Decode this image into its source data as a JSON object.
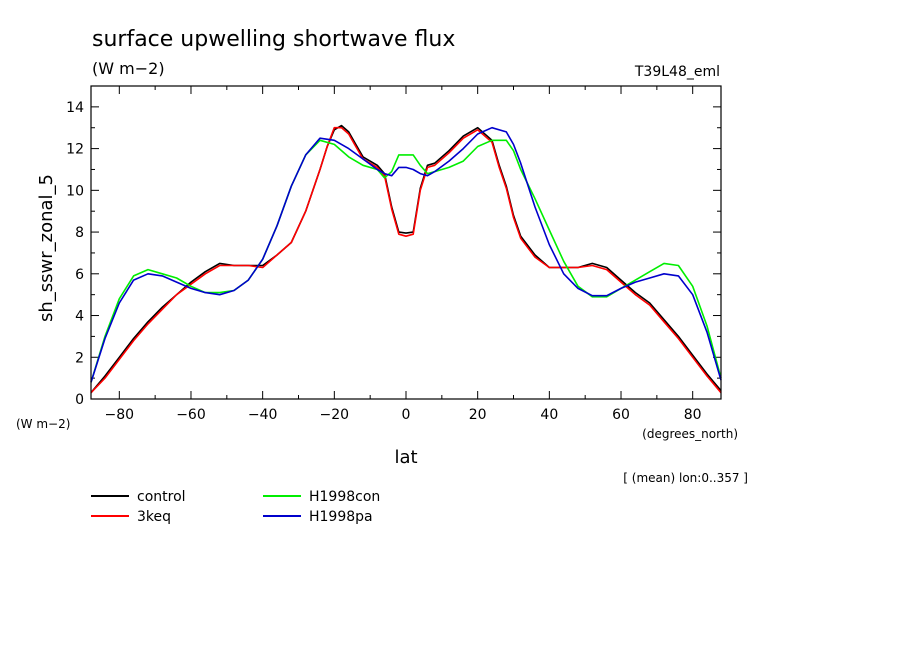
{
  "chart_data": {
    "type": "line",
    "title": "surface upwelling shortwave flux",
    "units_top": "(W m−2)",
    "run_label": "T39L48_eml",
    "ylabel": "sh_sswr_zonal_5",
    "units_y": "(W m−2)",
    "xlabel": "lat",
    "units_x": "(degrees_north)",
    "subset_note": "[ (mean) lon:0..357 ]",
    "xlim": [
      -87.9,
      87.9
    ],
    "ylim": [
      0,
      15
    ],
    "xticks": [
      -80,
      -60,
      -40,
      -20,
      0,
      20,
      40,
      60,
      80
    ],
    "yticks": [
      0,
      2,
      4,
      6,
      8,
      10,
      12,
      14
    ],
    "xtick_labels": [
      "−80",
      "−60",
      "−40",
      "−20",
      "0",
      "20",
      "40",
      "60",
      "80"
    ],
    "ytick_labels": [
      "0",
      "2",
      "4",
      "6",
      "8",
      "10",
      "12",
      "14"
    ],
    "legend_placement": "bottom",
    "series": [
      {
        "name": "control",
        "color": "#000000",
        "points": [
          [
            -87.9,
            0.3
          ],
          [
            -84,
            1.1
          ],
          [
            -80,
            2.0
          ],
          [
            -76,
            2.9
          ],
          [
            -72,
            3.7
          ],
          [
            -68,
            4.4
          ],
          [
            -64,
            5.0
          ],
          [
            -60,
            5.6
          ],
          [
            -56,
            6.1
          ],
          [
            -52,
            6.5
          ],
          [
            -48,
            6.4
          ],
          [
            -44,
            6.4
          ],
          [
            -40,
            6.4
          ],
          [
            -36,
            6.9
          ],
          [
            -32,
            7.5
          ],
          [
            -28,
            9.0
          ],
          [
            -24,
            11.0
          ],
          [
            -22,
            12.1
          ],
          [
            -20,
            12.9
          ],
          [
            -18,
            13.1
          ],
          [
            -16,
            12.8
          ],
          [
            -14,
            12.2
          ],
          [
            -12,
            11.6
          ],
          [
            -8,
            11.2
          ],
          [
            -6,
            10.8
          ],
          [
            -4,
            9.2
          ],
          [
            -2,
            8.0
          ],
          [
            0,
            7.95
          ],
          [
            2,
            8.0
          ],
          [
            4,
            10.1
          ],
          [
            6,
            11.2
          ],
          [
            8,
            11.3
          ],
          [
            12,
            11.9
          ],
          [
            16,
            12.6
          ],
          [
            20,
            13.0
          ],
          [
            24,
            12.4
          ],
          [
            26,
            11.2
          ],
          [
            28,
            10.2
          ],
          [
            30,
            8.8
          ],
          [
            32,
            7.8
          ],
          [
            36,
            6.9
          ],
          [
            40,
            6.3
          ],
          [
            44,
            6.3
          ],
          [
            48,
            6.3
          ],
          [
            52,
            6.5
          ],
          [
            56,
            6.3
          ],
          [
            60,
            5.7
          ],
          [
            64,
            5.1
          ],
          [
            68,
            4.6
          ],
          [
            72,
            3.8
          ],
          [
            76,
            3.0
          ],
          [
            80,
            2.1
          ],
          [
            84,
            1.2
          ],
          [
            87.9,
            0.4
          ]
        ]
      },
      {
        "name": "3keq",
        "color": "#ff0000",
        "points": [
          [
            -87.9,
            0.3
          ],
          [
            -84,
            1.0
          ],
          [
            -80,
            1.9
          ],
          [
            -76,
            2.8
          ],
          [
            -72,
            3.6
          ],
          [
            -68,
            4.3
          ],
          [
            -64,
            5.0
          ],
          [
            -60,
            5.5
          ],
          [
            -56,
            6.0
          ],
          [
            -52,
            6.4
          ],
          [
            -48,
            6.4
          ],
          [
            -44,
            6.4
          ],
          [
            -40,
            6.3
          ],
          [
            -36,
            6.9
          ],
          [
            -32,
            7.5
          ],
          [
            -28,
            9.0
          ],
          [
            -24,
            11.0
          ],
          [
            -22,
            12.1
          ],
          [
            -20,
            13.0
          ],
          [
            -18,
            13.0
          ],
          [
            -16,
            12.7
          ],
          [
            -14,
            12.1
          ],
          [
            -12,
            11.5
          ],
          [
            -8,
            11.1
          ],
          [
            -6,
            10.7
          ],
          [
            -4,
            9.1
          ],
          [
            -2,
            7.9
          ],
          [
            0,
            7.8
          ],
          [
            2,
            7.9
          ],
          [
            4,
            10.0
          ],
          [
            6,
            11.1
          ],
          [
            8,
            11.2
          ],
          [
            12,
            11.8
          ],
          [
            16,
            12.5
          ],
          [
            20,
            12.9
          ],
          [
            24,
            12.3
          ],
          [
            26,
            11.1
          ],
          [
            28,
            10.1
          ],
          [
            30,
            8.7
          ],
          [
            32,
            7.7
          ],
          [
            36,
            6.8
          ],
          [
            40,
            6.3
          ],
          [
            44,
            6.3
          ],
          [
            48,
            6.3
          ],
          [
            52,
            6.4
          ],
          [
            56,
            6.2
          ],
          [
            60,
            5.6
          ],
          [
            64,
            5.0
          ],
          [
            68,
            4.5
          ],
          [
            72,
            3.7
          ],
          [
            76,
            2.9
          ],
          [
            80,
            2.0
          ],
          [
            84,
            1.1
          ],
          [
            87.9,
            0.3
          ]
        ]
      },
      {
        "name": "H1998con",
        "color": "#00ee00",
        "points": [
          [
            -87.9,
            0.8
          ],
          [
            -84,
            3.0
          ],
          [
            -80,
            4.8
          ],
          [
            -76,
            5.9
          ],
          [
            -72,
            6.2
          ],
          [
            -68,
            6.0
          ],
          [
            -64,
            5.8
          ],
          [
            -60,
            5.4
          ],
          [
            -56,
            5.1
          ],
          [
            -52,
            5.1
          ],
          [
            -48,
            5.2
          ],
          [
            -44,
            5.7
          ],
          [
            -40,
            6.7
          ],
          [
            -36,
            8.3
          ],
          [
            -32,
            10.2
          ],
          [
            -28,
            11.7
          ],
          [
            -24,
            12.4
          ],
          [
            -20,
            12.2
          ],
          [
            -16,
            11.6
          ],
          [
            -12,
            11.2
          ],
          [
            -8,
            11.0
          ],
          [
            -6,
            10.6
          ],
          [
            -4,
            10.9
          ],
          [
            -2,
            11.7
          ],
          [
            0,
            11.7
          ],
          [
            2,
            11.7
          ],
          [
            4,
            11.2
          ],
          [
            6,
            10.8
          ],
          [
            8,
            10.9
          ],
          [
            12,
            11.1
          ],
          [
            16,
            11.4
          ],
          [
            20,
            12.1
          ],
          [
            24,
            12.4
          ],
          [
            28,
            12.4
          ],
          [
            30,
            11.9
          ],
          [
            32,
            11.0
          ],
          [
            36,
            9.6
          ],
          [
            40,
            8.1
          ],
          [
            44,
            6.6
          ],
          [
            48,
            5.4
          ],
          [
            52,
            4.9
          ],
          [
            56,
            4.9
          ],
          [
            60,
            5.3
          ],
          [
            64,
            5.7
          ],
          [
            68,
            6.1
          ],
          [
            72,
            6.5
          ],
          [
            76,
            6.4
          ],
          [
            80,
            5.4
          ],
          [
            84,
            3.5
          ],
          [
            87.9,
            1.0
          ]
        ]
      },
      {
        "name": "H1998pa",
        "color": "#0000cc",
        "points": [
          [
            -87.9,
            0.8
          ],
          [
            -84,
            2.9
          ],
          [
            -80,
            4.6
          ],
          [
            -76,
            5.7
          ],
          [
            -72,
            6.0
          ],
          [
            -68,
            5.9
          ],
          [
            -64,
            5.6
          ],
          [
            -60,
            5.3
          ],
          [
            -56,
            5.1
          ],
          [
            -52,
            5.0
          ],
          [
            -48,
            5.2
          ],
          [
            -44,
            5.7
          ],
          [
            -40,
            6.7
          ],
          [
            -36,
            8.3
          ],
          [
            -32,
            10.2
          ],
          [
            -28,
            11.7
          ],
          [
            -24,
            12.5
          ],
          [
            -20,
            12.4
          ],
          [
            -16,
            12.0
          ],
          [
            -12,
            11.5
          ],
          [
            -8,
            11.0
          ],
          [
            -6,
            10.8
          ],
          [
            -4,
            10.7
          ],
          [
            -2,
            11.1
          ],
          [
            0,
            11.1
          ],
          [
            2,
            11.0
          ],
          [
            4,
            10.8
          ],
          [
            6,
            10.7
          ],
          [
            8,
            10.9
          ],
          [
            12,
            11.4
          ],
          [
            16,
            12.0
          ],
          [
            20,
            12.7
          ],
          [
            24,
            13.0
          ],
          [
            28,
            12.8
          ],
          [
            30,
            12.2
          ],
          [
            32,
            11.3
          ],
          [
            36,
            9.2
          ],
          [
            40,
            7.4
          ],
          [
            44,
            6.0
          ],
          [
            48,
            5.3
          ],
          [
            52,
            4.95
          ],
          [
            56,
            4.95
          ],
          [
            60,
            5.3
          ],
          [
            64,
            5.6
          ],
          [
            68,
            5.8
          ],
          [
            72,
            6.0
          ],
          [
            76,
            5.9
          ],
          [
            80,
            5.0
          ],
          [
            84,
            3.2
          ],
          [
            87.9,
            0.9
          ]
        ]
      }
    ]
  }
}
